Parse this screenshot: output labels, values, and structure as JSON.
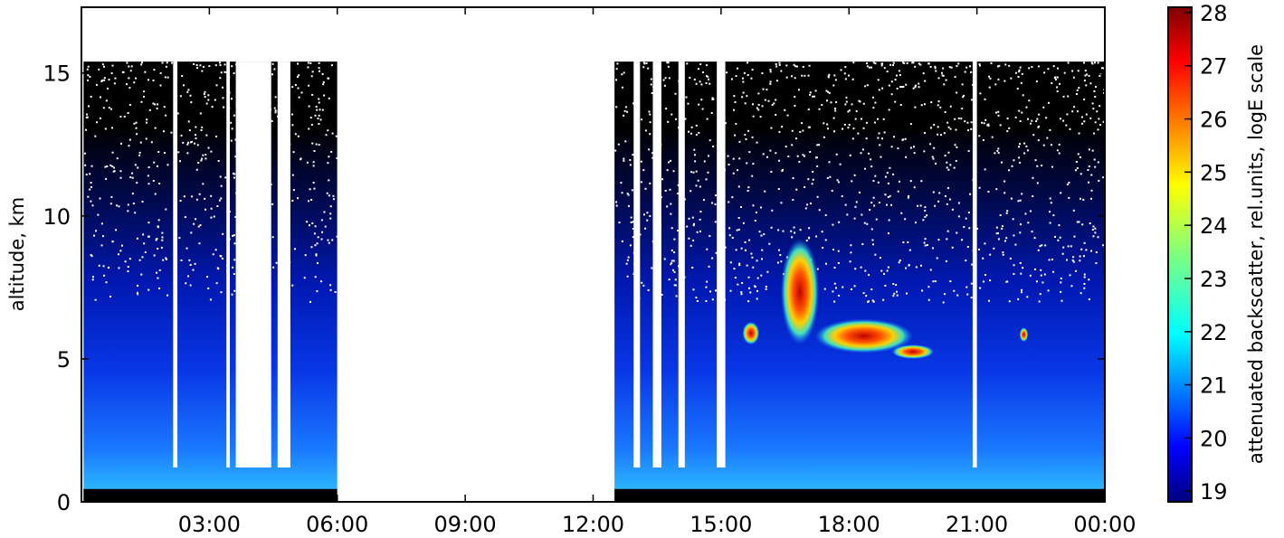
{
  "chart_data": {
    "type": "heatmap",
    "title": "",
    "xlabel": "",
    "ylabel": "altitude, km",
    "x_ticks": [
      "03:00",
      "06:00",
      "09:00",
      "12:00",
      "15:00",
      "18:00",
      "21:00",
      "00:00"
    ],
    "x_tick_hours": [
      3,
      6,
      9,
      12,
      15,
      18,
      21,
      24
    ],
    "xlim_hours": [
      0,
      24
    ],
    "y_ticks": [
      0,
      5,
      10,
      15
    ],
    "ylim": [
      0,
      17.3
    ],
    "colorbar": {
      "label": "attenuated backscatter, rel.units, logE scale",
      "ticks": [
        19,
        20,
        21,
        22,
        23,
        24,
        25,
        26,
        27,
        28
      ],
      "range": [
        18.8,
        28.1
      ],
      "colormap": "jet"
    },
    "data_gaps_hours": [
      [
        6.0,
        12.5
      ]
    ],
    "measured_top_altitude_km": 15.4,
    "features": [
      {
        "kind": "cloud",
        "hours": [
          16.4,
          17.3
        ],
        "altitude_km": [
          5.5,
          9.2
        ],
        "max_value": 27.5
      },
      {
        "kind": "cloud_layer",
        "hours": [
          17.2,
          19.5
        ],
        "altitude_km": [
          5.2,
          6.4
        ],
        "max_value": 26.8
      },
      {
        "kind": "cloud_layer",
        "hours": [
          19.0,
          20.0
        ],
        "altitude_km": [
          5.0,
          5.5
        ],
        "max_value": 26.5
      },
      {
        "kind": "cloud",
        "hours": [
          15.5,
          15.9
        ],
        "altitude_km": [
          5.5,
          6.3
        ],
        "max_value": 25.5
      },
      {
        "kind": "cloud",
        "hours": [
          22.0,
          22.2
        ],
        "altitude_km": [
          5.6,
          6.1
        ],
        "max_value": 25.0
      }
    ]
  },
  "colors": {
    "background": "#ffffff",
    "axes": "#000000",
    "surface": "#000000"
  }
}
